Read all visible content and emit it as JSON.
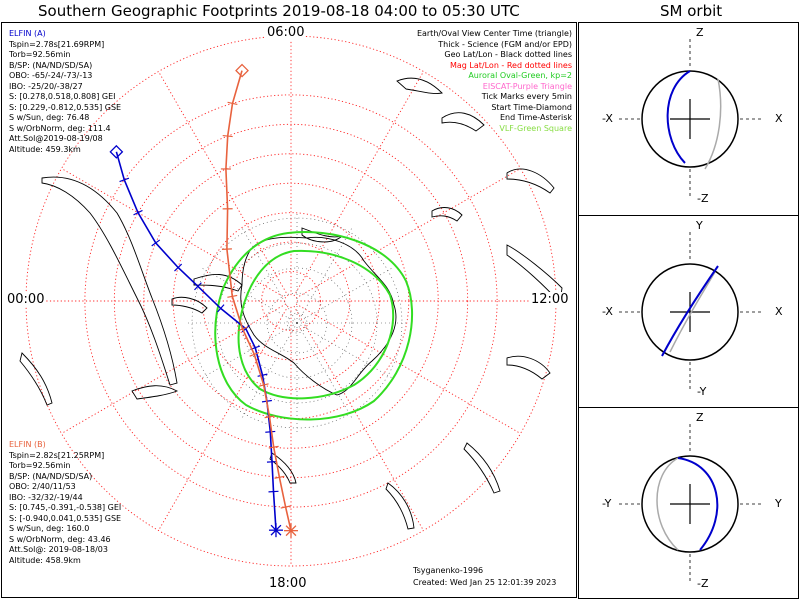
{
  "title": "Southern Geographic Footprints 2019-08-18 04:00 to 05:30 UTC",
  "sm_title": "SM orbit",
  "hours": {
    "top": "06:00",
    "left": "00:00",
    "right": "12:00",
    "bottom": "18:00"
  },
  "elfin_a": {
    "color": "#0000cc",
    "lines": [
      "ELFIN (A)",
      "Tspin=2.78s[21.69RPM]",
      "Torb=92.56min",
      "B/SP: (NA/ND/SD/SA)",
      "OBO: -65/-24/-73/-13",
      "IBO: -25/20/-38/27",
      "S: [0.278,0.518,0.808] GEI",
      "S: [0.229,-0.812,0.535] GSE",
      "S w/Sun, deg: 76.48",
      "S w/OrbNorm, deg: 111.4",
      "Att.Sol@2019-08-19/08",
      "Altitude: 459.3km"
    ]
  },
  "elfin_b": {
    "color": "#e8623e",
    "lines": [
      "ELFIN (B)",
      "Tspin=2.82s[21.25RPM]",
      "Torb=92.56min",
      "B/SP: (NA/ND/SD/SA)",
      "OBO: 2/40/11/53",
      "IBO: -32/32/-19/44",
      "S: [0.745,-0.391,-0.538] GEI",
      "S: [-0.940,0.041,0.535] GSE",
      "S w/Sun, deg: 160.0",
      "S w/OrbNorm, deg: 43.46",
      "Att.Sol@: 2019-08-18/03",
      "Altitude: 458.9km"
    ]
  },
  "legend": [
    {
      "text": "Earth/Oval View Center Time (triangle)",
      "color": "#000000"
    },
    {
      "text": "Thick - Science (FGM and/or EPD)",
      "color": "#000000"
    },
    {
      "text": "Geo Lat/Lon - Black dotted lines",
      "color": "#000000"
    },
    {
      "text": "Mag Lat/Lon - Red dotted lines",
      "color": "#ff0000"
    },
    {
      "text": "Auroral Oval-Green, kp=2",
      "color": "#22cc22"
    },
    {
      "text": "EISCAT-Purple Triangle",
      "color": "#ff66cc"
    },
    {
      "text": "Tick Marks every 5min",
      "color": "#000000"
    },
    {
      "text": "Start Time-Diamond",
      "color": "#000000"
    },
    {
      "text": "End Time-Asterisk",
      "color": "#000000"
    },
    {
      "text": "VLF-Green Square",
      "color": "#88dd44"
    }
  ],
  "credits": {
    "author": "Tsyganenko-1996",
    "created": "Created: Wed Jan 25 12:01:39 2023"
  },
  "sm_panels": [
    {
      "top": "Z",
      "bottom": "-Z",
      "left": "-X",
      "right": "X"
    },
    {
      "top": "Y",
      "bottom": "-Y",
      "left": "-X",
      "right": "X"
    },
    {
      "top": "Z",
      "bottom": "-Z",
      "left": "-Y",
      "right": "Y"
    }
  ],
  "chart_data": {
    "type": "polar-map",
    "hemisphere": "south",
    "lat_rings_deg": [
      -80,
      -70,
      -60,
      -50,
      -40,
      -30,
      -20
    ],
    "oval_kp": 2,
    "tracks": [
      {
        "name": "ELFIN (A)",
        "color": "#0000cc",
        "points": [
          [
            -12,
            2.7
          ],
          [
            -20,
            2.4
          ],
          [
            -30,
            2.0
          ],
          [
            -40,
            1.55
          ],
          [
            -50,
            1.1
          ],
          [
            -58,
            0.6
          ],
          [
            -66,
            23.6
          ],
          [
            -72,
            21.9
          ],
          [
            -70,
            20.5
          ],
          [
            -63,
            19.4
          ],
          [
            -55,
            18.9
          ],
          [
            -45,
            18.6
          ],
          [
            -35,
            18.45
          ],
          [
            -25,
            18.35
          ],
          [
            -12,
            18.25
          ]
        ]
      },
      {
        "name": "ELFIN (B)",
        "color": "#e8623e",
        "points": [
          [
            -10,
            5.2
          ],
          [
            -20,
            4.9
          ],
          [
            -30,
            4.6
          ],
          [
            -40,
            4.25
          ],
          [
            -52,
            3.7
          ],
          [
            -62,
            2.6
          ],
          [
            -70,
            0.3
          ],
          [
            -71,
            22.0
          ],
          [
            -68,
            20.3
          ],
          [
            -60,
            19.2
          ],
          [
            -50,
            18.7
          ],
          [
            -40,
            18.45
          ],
          [
            -30,
            18.25
          ],
          [
            -20,
            18.1
          ],
          [
            -12,
            18.0
          ]
        ]
      }
    ]
  }
}
